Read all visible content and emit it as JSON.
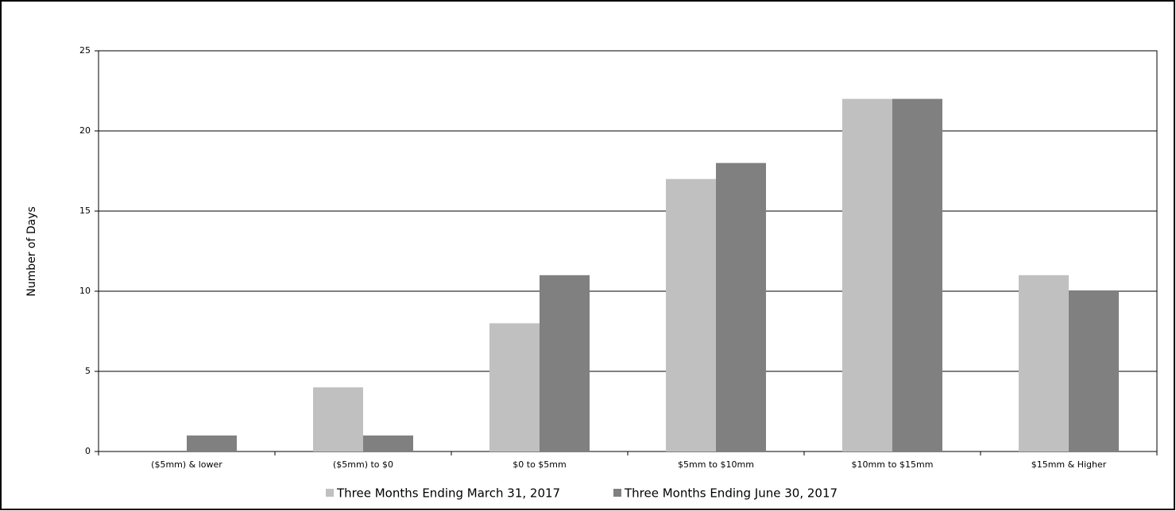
{
  "chart_data": {
    "type": "bar",
    "ylabel": "Number of Days",
    "categories": [
      "($5mm) & lower",
      "($5mm) to $0",
      "$0 to $5mm",
      "$5mm to $10mm",
      "$10mm to $15mm",
      "$15mm & Higher"
    ],
    "series": [
      {
        "name": "Three Months Ending March 31, 2017",
        "color": "#c0c0c0",
        "values": [
          0,
          4,
          8,
          17,
          22,
          11
        ]
      },
      {
        "name": "Three Months Ending June 30, 2017",
        "color": "#808080",
        "values": [
          1,
          1,
          11,
          18,
          22,
          10
        ]
      }
    ],
    "ylim": [
      0,
      25
    ],
    "yticks": [
      0,
      5,
      10,
      15,
      20,
      25
    ],
    "grid": true,
    "legend": "bottom"
  }
}
